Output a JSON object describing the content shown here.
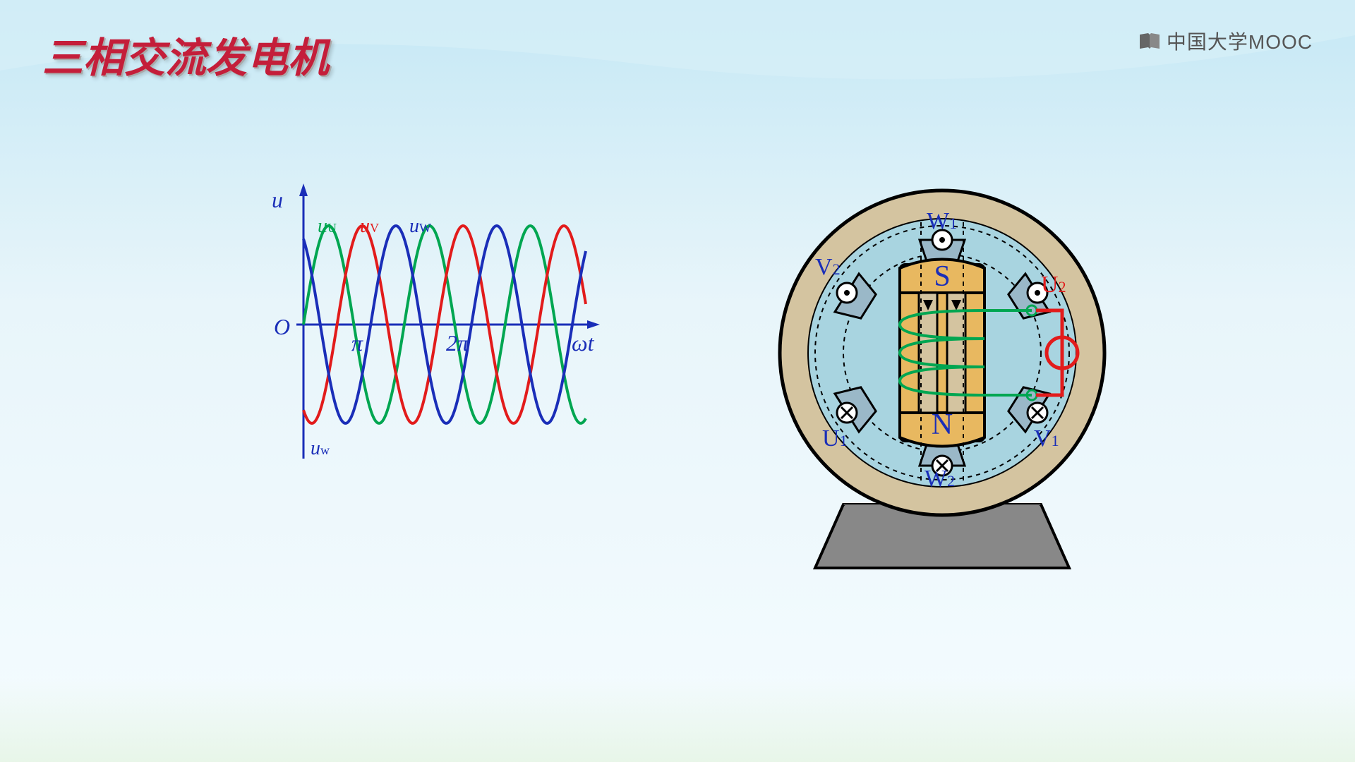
{
  "title": "三相交流发电机",
  "logo": {
    "text": "中国大学MOOC"
  },
  "chart": {
    "type": "line",
    "y_label": "u",
    "x_label": "ωt",
    "origin_label": "O",
    "x_ticks": [
      "π",
      "2π"
    ],
    "xlim": [
      0,
      400
    ],
    "ylim": [
      -150,
      150
    ],
    "amplitude": 140,
    "series": [
      {
        "name": "uU",
        "label_main": "u",
        "label_sub": "U",
        "color": "#00a651",
        "phase": 0
      },
      {
        "name": "uV",
        "label_main": "u",
        "label_sub": "V",
        "color": "#e21b1b",
        "phase": -2.094
      },
      {
        "name": "uW",
        "label_main": "u",
        "label_sub": "W",
        "color": "#1a2eb8",
        "phase": -4.189
      }
    ],
    "bottom_label": {
      "main": "u",
      "sub": "w",
      "color": "#1a2eb8"
    },
    "axis_color": "#1a2eb8",
    "axis_width": 3
  },
  "generator": {
    "outer_ring_color": "#d4c4a0",
    "inner_bg_color": "#a8d4e0",
    "stator_color": "#9ab8c8",
    "rotor_color": "#e8b860",
    "coil_color": "#00a651",
    "electrode_color": "#e21b1b",
    "base_color": "#888888",
    "outline_color": "#000000",
    "dash_color": "#000000",
    "pole_top": "S",
    "pole_bottom": "N",
    "labels": [
      {
        "text": "W",
        "sub": "1",
        "color": "#1a2eb8"
      },
      {
        "text": "V",
        "sub": "2",
        "color": "#1a2eb8"
      },
      {
        "text": "U",
        "sub": "2",
        "color": "#e21b1b"
      },
      {
        "text": "U",
        "sub": "1",
        "color": "#1a2eb8"
      },
      {
        "text": "V",
        "sub": "1",
        "color": "#1a2eb8"
      },
      {
        "text": "W",
        "sub": "2",
        "color": "#1a2eb8"
      }
    ]
  }
}
